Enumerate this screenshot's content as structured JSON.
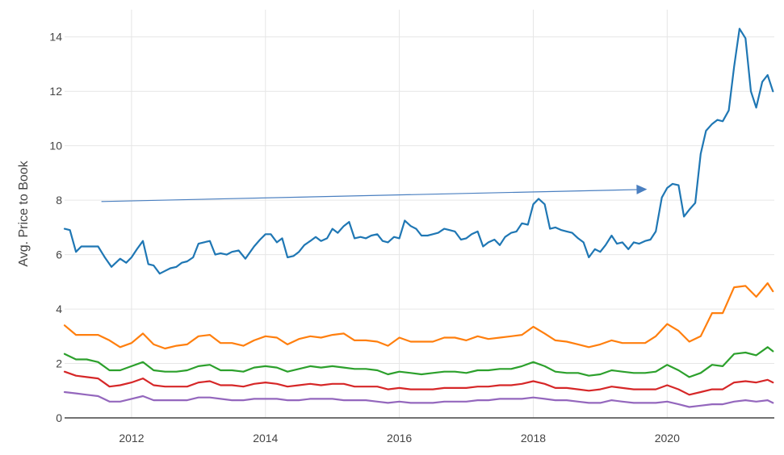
{
  "chart_data": {
    "type": "line",
    "title": "",
    "xlabel": "",
    "ylabel": "Avg. Price to Book",
    "xlim": [
      2011.0,
      2021.6
    ],
    "ylim": [
      0,
      15
    ],
    "x_ticks": [
      2012,
      2014,
      2016,
      2018,
      2020
    ],
    "x_tick_labels": [
      "2012",
      "2014",
      "2016",
      "2018",
      "2020"
    ],
    "y_ticks": [
      0,
      2,
      4,
      6,
      8,
      10,
      12,
      14
    ],
    "y_tick_labels": [
      "0",
      "2",
      "4",
      "6",
      "8",
      "10",
      "12",
      "14"
    ],
    "grid": true,
    "legend": "none",
    "annotations": [
      {
        "type": "arrow",
        "from": [
          2011.55,
          7.95
        ],
        "to": [
          2019.7,
          8.4
        ],
        "color": "#4a7fc0"
      }
    ],
    "series": [
      {
        "color": "#1f77b4",
        "x": [
          2011.0,
          2011.08,
          2011.17,
          2011.25,
          2011.33,
          2011.5,
          2011.6,
          2011.7,
          2011.83,
          2011.92,
          2012.0,
          2012.08,
          2012.17,
          2012.25,
          2012.33,
          2012.42,
          2012.5,
          2012.58,
          2012.67,
          2012.75,
          2012.83,
          2012.92,
          2013.0,
          2013.08,
          2013.17,
          2013.25,
          2013.33,
          2013.42,
          2013.5,
          2013.6,
          2013.7,
          2013.83,
          2013.92,
          2014.0,
          2014.08,
          2014.17,
          2014.25,
          2014.33,
          2014.42,
          2014.5,
          2014.58,
          2014.67,
          2014.75,
          2014.83,
          2014.92,
          2015.0,
          2015.08,
          2015.17,
          2015.25,
          2015.33,
          2015.42,
          2015.5,
          2015.58,
          2015.67,
          2015.75,
          2015.83,
          2015.92,
          2016.0,
          2016.08,
          2016.17,
          2016.25,
          2016.33,
          2016.42,
          2016.5,
          2016.58,
          2016.67,
          2016.75,
          2016.83,
          2016.92,
          2017.0,
          2017.08,
          2017.17,
          2017.25,
          2017.33,
          2017.42,
          2017.5,
          2017.58,
          2017.67,
          2017.75,
          2017.83,
          2017.92,
          2018.0,
          2018.08,
          2018.17,
          2018.25,
          2018.33,
          2018.42,
          2018.5,
          2018.58,
          2018.67,
          2018.75,
          2018.83,
          2018.92,
          2019.0,
          2019.08,
          2019.17,
          2019.25,
          2019.33,
          2019.42,
          2019.5,
          2019.58,
          2019.67,
          2019.75,
          2019.83,
          2019.92,
          2020.0,
          2020.08,
          2020.17,
          2020.25,
          2020.33,
          2020.42,
          2020.5,
          2020.58,
          2020.67,
          2020.75,
          2020.83,
          2020.92,
          2021.0,
          2021.08,
          2021.17,
          2021.25,
          2021.33,
          2021.42,
          2021.5,
          2021.58
        ],
        "values": [
          6.95,
          6.9,
          6.1,
          6.3,
          6.3,
          6.3,
          5.9,
          5.55,
          5.85,
          5.7,
          5.9,
          6.2,
          6.5,
          5.65,
          5.6,
          5.3,
          5.4,
          5.5,
          5.55,
          5.7,
          5.75,
          5.9,
          6.4,
          6.45,
          6.5,
          6.0,
          6.05,
          6.0,
          6.1,
          6.15,
          5.85,
          6.3,
          6.55,
          6.75,
          6.75,
          6.45,
          6.6,
          5.9,
          5.95,
          6.1,
          6.35,
          6.5,
          6.65,
          6.5,
          6.6,
          6.95,
          6.8,
          7.05,
          7.2,
          6.6,
          6.65,
          6.6,
          6.7,
          6.75,
          6.5,
          6.45,
          6.65,
          6.6,
          7.25,
          7.05,
          6.95,
          6.7,
          6.7,
          6.75,
          6.8,
          6.95,
          6.9,
          6.85,
          6.55,
          6.6,
          6.75,
          6.85,
          6.3,
          6.45,
          6.55,
          6.35,
          6.65,
          6.8,
          6.85,
          7.15,
          7.1,
          7.85,
          8.05,
          7.85,
          6.95,
          7.0,
          6.9,
          6.85,
          6.8,
          6.6,
          6.45,
          5.9,
          6.2,
          6.1,
          6.35,
          6.7,
          6.4,
          6.45,
          6.2,
          6.45,
          6.4,
          6.5,
          6.55,
          6.85,
          8.1,
          8.45,
          8.6,
          8.55,
          7.4,
          7.65,
          7.9,
          9.7,
          10.55,
          10.8,
          10.95,
          10.9,
          11.3,
          12.9,
          14.3,
          13.95,
          12.0,
          11.4,
          12.35,
          12.6,
          12.0
        ]
      },
      {
        "color": "#ff7f0e",
        "x": [
          2011.0,
          2011.17,
          2011.33,
          2011.5,
          2011.67,
          2011.83,
          2012.0,
          2012.17,
          2012.33,
          2012.5,
          2012.67,
          2012.83,
          2013.0,
          2013.17,
          2013.33,
          2013.5,
          2013.67,
          2013.83,
          2014.0,
          2014.17,
          2014.33,
          2014.5,
          2014.67,
          2014.83,
          2015.0,
          2015.17,
          2015.33,
          2015.5,
          2015.67,
          2015.83,
          2016.0,
          2016.17,
          2016.33,
          2016.5,
          2016.67,
          2016.83,
          2017.0,
          2017.17,
          2017.33,
          2017.5,
          2017.67,
          2017.83,
          2018.0,
          2018.17,
          2018.33,
          2018.5,
          2018.67,
          2018.83,
          2019.0,
          2019.17,
          2019.33,
          2019.5,
          2019.67,
          2019.83,
          2020.0,
          2020.17,
          2020.33,
          2020.5,
          2020.67,
          2020.83,
          2021.0,
          2021.17,
          2021.33,
          2021.5,
          2021.58
        ],
        "values": [
          3.4,
          3.05,
          3.05,
          3.05,
          2.85,
          2.6,
          2.75,
          3.1,
          2.7,
          2.55,
          2.65,
          2.7,
          3.0,
          3.05,
          2.75,
          2.75,
          2.65,
          2.85,
          3.0,
          2.95,
          2.7,
          2.9,
          3.0,
          2.95,
          3.05,
          3.1,
          2.85,
          2.85,
          2.8,
          2.65,
          2.95,
          2.8,
          2.8,
          2.8,
          2.95,
          2.95,
          2.85,
          3.0,
          2.9,
          2.95,
          3.0,
          3.05,
          3.35,
          3.1,
          2.85,
          2.8,
          2.7,
          2.6,
          2.7,
          2.85,
          2.75,
          2.75,
          2.75,
          3.0,
          3.45,
          3.2,
          2.8,
          3.0,
          3.85,
          3.85,
          4.8,
          4.85,
          4.45,
          4.95,
          4.65
        ]
      },
      {
        "color": "#2ca02c",
        "x": [
          2011.0,
          2011.17,
          2011.33,
          2011.5,
          2011.67,
          2011.83,
          2012.0,
          2012.17,
          2012.33,
          2012.5,
          2012.67,
          2012.83,
          2013.0,
          2013.17,
          2013.33,
          2013.5,
          2013.67,
          2013.83,
          2014.0,
          2014.17,
          2014.33,
          2014.5,
          2014.67,
          2014.83,
          2015.0,
          2015.17,
          2015.33,
          2015.5,
          2015.67,
          2015.83,
          2016.0,
          2016.17,
          2016.33,
          2016.5,
          2016.67,
          2016.83,
          2017.0,
          2017.17,
          2017.33,
          2017.5,
          2017.67,
          2017.83,
          2018.0,
          2018.17,
          2018.33,
          2018.5,
          2018.67,
          2018.83,
          2019.0,
          2019.17,
          2019.33,
          2019.5,
          2019.67,
          2019.83,
          2020.0,
          2020.17,
          2020.33,
          2020.5,
          2020.67,
          2020.83,
          2021.0,
          2021.17,
          2021.33,
          2021.5,
          2021.58
        ],
        "values": [
          2.35,
          2.15,
          2.15,
          2.05,
          1.75,
          1.75,
          1.9,
          2.05,
          1.75,
          1.7,
          1.7,
          1.75,
          1.9,
          1.95,
          1.75,
          1.75,
          1.7,
          1.85,
          1.9,
          1.85,
          1.7,
          1.8,
          1.9,
          1.85,
          1.9,
          1.85,
          1.8,
          1.8,
          1.75,
          1.6,
          1.7,
          1.65,
          1.6,
          1.65,
          1.7,
          1.7,
          1.65,
          1.75,
          1.75,
          1.8,
          1.8,
          1.9,
          2.05,
          1.9,
          1.7,
          1.65,
          1.65,
          1.55,
          1.6,
          1.75,
          1.7,
          1.65,
          1.65,
          1.7,
          1.95,
          1.75,
          1.5,
          1.65,
          1.95,
          1.9,
          2.35,
          2.4,
          2.3,
          2.6,
          2.45
        ]
      },
      {
        "color": "#d62728",
        "x": [
          2011.0,
          2011.17,
          2011.33,
          2011.5,
          2011.67,
          2011.83,
          2012.0,
          2012.17,
          2012.33,
          2012.5,
          2012.67,
          2012.83,
          2013.0,
          2013.17,
          2013.33,
          2013.5,
          2013.67,
          2013.83,
          2014.0,
          2014.17,
          2014.33,
          2014.5,
          2014.67,
          2014.83,
          2015.0,
          2015.17,
          2015.33,
          2015.5,
          2015.67,
          2015.83,
          2016.0,
          2016.17,
          2016.33,
          2016.5,
          2016.67,
          2016.83,
          2017.0,
          2017.17,
          2017.33,
          2017.5,
          2017.67,
          2017.83,
          2018.0,
          2018.17,
          2018.33,
          2018.5,
          2018.67,
          2018.83,
          2019.0,
          2019.17,
          2019.33,
          2019.5,
          2019.67,
          2019.83,
          2020.0,
          2020.17,
          2020.33,
          2020.5,
          2020.67,
          2020.83,
          2021.0,
          2021.17,
          2021.33,
          2021.5,
          2021.58
        ],
        "values": [
          1.7,
          1.55,
          1.5,
          1.45,
          1.15,
          1.2,
          1.3,
          1.45,
          1.2,
          1.15,
          1.15,
          1.15,
          1.3,
          1.35,
          1.2,
          1.2,
          1.15,
          1.25,
          1.3,
          1.25,
          1.15,
          1.2,
          1.25,
          1.2,
          1.25,
          1.25,
          1.15,
          1.15,
          1.15,
          1.05,
          1.1,
          1.05,
          1.05,
          1.05,
          1.1,
          1.1,
          1.1,
          1.15,
          1.15,
          1.2,
          1.2,
          1.25,
          1.35,
          1.25,
          1.1,
          1.1,
          1.05,
          1.0,
          1.05,
          1.15,
          1.1,
          1.05,
          1.05,
          1.05,
          1.2,
          1.05,
          0.85,
          0.95,
          1.05,
          1.05,
          1.3,
          1.35,
          1.3,
          1.4,
          1.3
        ]
      },
      {
        "color": "#9467bd",
        "x": [
          2011.0,
          2011.17,
          2011.33,
          2011.5,
          2011.67,
          2011.83,
          2012.0,
          2012.17,
          2012.33,
          2012.5,
          2012.67,
          2012.83,
          2013.0,
          2013.17,
          2013.33,
          2013.5,
          2013.67,
          2013.83,
          2014.0,
          2014.17,
          2014.33,
          2014.5,
          2014.67,
          2014.83,
          2015.0,
          2015.17,
          2015.33,
          2015.5,
          2015.67,
          2015.83,
          2016.0,
          2016.17,
          2016.33,
          2016.5,
          2016.67,
          2016.83,
          2017.0,
          2017.17,
          2017.33,
          2017.5,
          2017.67,
          2017.83,
          2018.0,
          2018.17,
          2018.33,
          2018.5,
          2018.67,
          2018.83,
          2019.0,
          2019.17,
          2019.33,
          2019.5,
          2019.67,
          2019.83,
          2020.0,
          2020.17,
          2020.33,
          2020.5,
          2020.67,
          2020.83,
          2021.0,
          2021.17,
          2021.33,
          2021.5,
          2021.58
        ],
        "values": [
          0.95,
          0.9,
          0.85,
          0.8,
          0.6,
          0.6,
          0.7,
          0.8,
          0.65,
          0.65,
          0.65,
          0.65,
          0.75,
          0.75,
          0.7,
          0.65,
          0.65,
          0.7,
          0.7,
          0.7,
          0.65,
          0.65,
          0.7,
          0.7,
          0.7,
          0.65,
          0.65,
          0.65,
          0.6,
          0.55,
          0.6,
          0.55,
          0.55,
          0.55,
          0.6,
          0.6,
          0.6,
          0.65,
          0.65,
          0.7,
          0.7,
          0.7,
          0.75,
          0.7,
          0.65,
          0.65,
          0.6,
          0.55,
          0.55,
          0.65,
          0.6,
          0.55,
          0.55,
          0.55,
          0.6,
          0.5,
          0.4,
          0.45,
          0.5,
          0.5,
          0.6,
          0.65,
          0.6,
          0.65,
          0.55
        ]
      }
    ]
  }
}
